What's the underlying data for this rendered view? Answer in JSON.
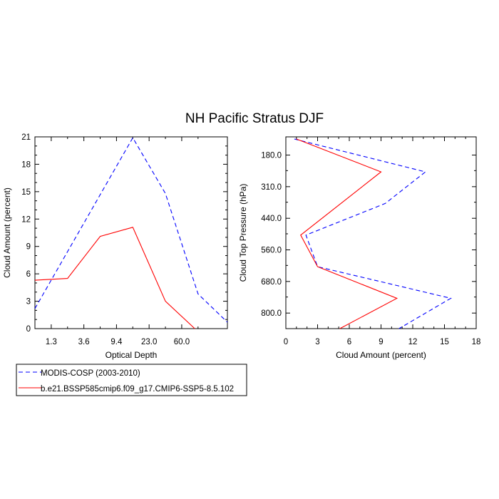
{
  "title": "NH Pacific Stratus DJF",
  "colors": {
    "obs": "#0000ff",
    "model": "#ff0000",
    "axis": "#000000"
  },
  "legend": {
    "entries": [
      {
        "label": "MODIS-COSP (2003-2010)",
        "style": "dashed",
        "color": "#0000ff"
      },
      {
        "label": "b.e21.BSSP585cmip6.f09_g17.CMIP6-SSP5-8.5.102",
        "style": "solid",
        "color": "#ff0000"
      }
    ]
  },
  "chart_data": [
    {
      "type": "line",
      "xlabel": "Optical Depth",
      "ylabel": "Cloud Amount (percent)",
      "x_ticks": [
        "1.3",
        "3.6",
        "9.4",
        "23.0",
        "60.0"
      ],
      "y_ticks": [
        "0",
        "3",
        "6",
        "9",
        "12",
        "15",
        "18",
        "21"
      ],
      "ylim": [
        0,
        21
      ],
      "series": [
        {
          "name": "MODIS-COSP (2003-2010)",
          "style": "dashed",
          "points": [
            [
              0.0,
              2.2
            ],
            [
              3.0,
              20.9
            ],
            [
              4.0,
              14.8
            ],
            [
              5.0,
              3.8
            ],
            [
              5.9,
              0.7
            ]
          ]
        },
        {
          "name": "b.e21.BSSP585cmip6.f09_g17.CMIP6-SSP5-8.5.102",
          "style": "solid",
          "points": [
            [
              0.0,
              5.3
            ],
            [
              1.0,
              5.5
            ],
            [
              2.0,
              10.1
            ],
            [
              3.0,
              11.1
            ],
            [
              4.0,
              3.0
            ],
            [
              4.9,
              0.0
            ]
          ]
        }
      ]
    },
    {
      "type": "line",
      "xlabel": "Cloud Amount (percent)",
      "ylabel": "Cloud Top Pressure (hPa)",
      "x_ticks": [
        "0",
        "3",
        "6",
        "9",
        "12",
        "15",
        "18"
      ],
      "y_ticks": [
        "180.0",
        "310.0",
        "440.0",
        "560.0",
        "680.0",
        "800.0"
      ],
      "xlim": [
        0,
        18
      ],
      "series": [
        {
          "name": "MODIS-COSP (2003-2010)",
          "style": "dashed",
          "points": [
            [
              0.8,
              115
            ],
            [
              13.2,
              245
            ],
            [
              9.4,
              370
            ],
            [
              1.9,
              495
            ],
            [
              3.0,
              620
            ],
            [
              15.6,
              745
            ],
            [
              10.7,
              865
            ]
          ]
        },
        {
          "name": "b.e21.BSSP585cmip6.f09_g17.CMIP6-SSP5-8.5.102",
          "style": "solid",
          "points": [
            [
              1.0,
              115
            ],
            [
              9.0,
              245
            ],
            [
              1.4,
              495
            ],
            [
              3.0,
              620
            ],
            [
              10.5,
              745
            ],
            [
              5.1,
              865
            ]
          ]
        }
      ]
    }
  ]
}
